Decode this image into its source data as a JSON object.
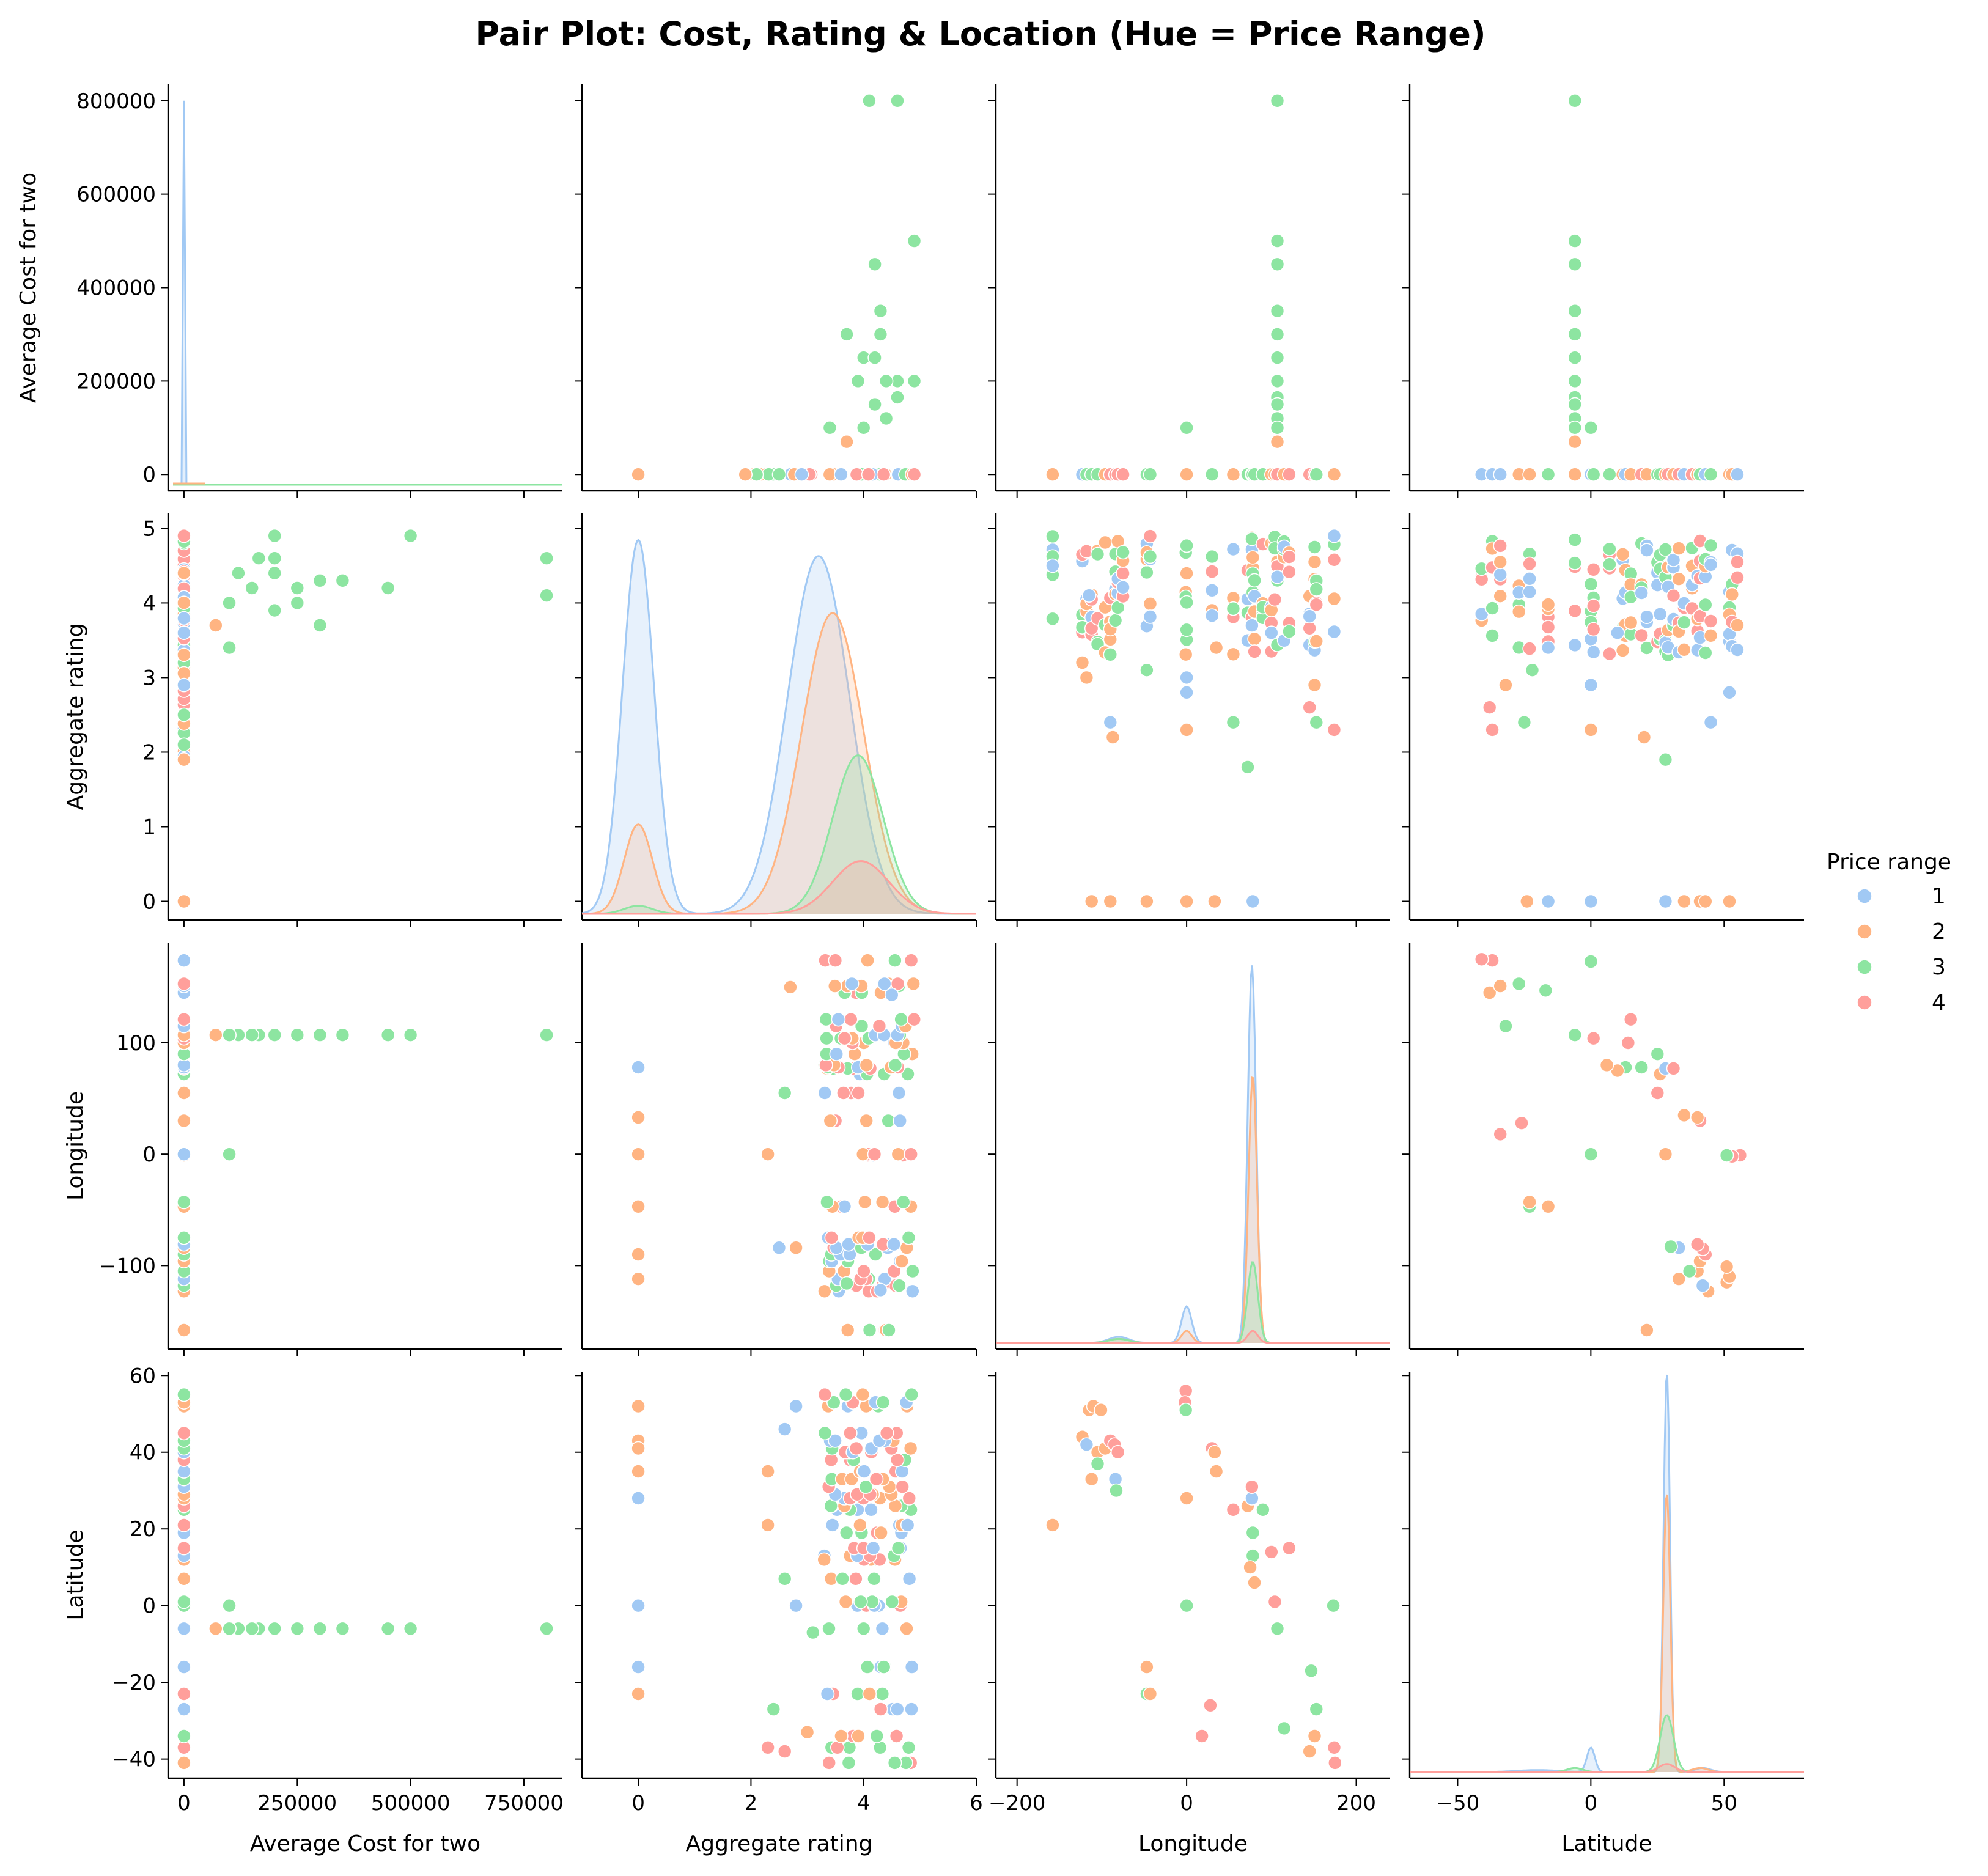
{
  "chart_data": {
    "type": "scatter",
    "title": "Pair Plot: Cost, Rating & Location (Hue = Price Range)",
    "variables": [
      {
        "key": "cost",
        "label": "Average Cost for two",
        "range": [
          -35000,
          835000
        ],
        "ticks": [
          0,
          200000,
          400000,
          600000,
          800000
        ],
        "xticks": [
          0,
          250000,
          500000,
          750000
        ],
        "xtick_labels": [
          "0",
          "250000",
          "500000",
          "750000"
        ]
      },
      {
        "key": "rating",
        "label": "Aggregate rating",
        "range": [
          -0.25,
          5.2
        ],
        "ticks": [
          0,
          1,
          2,
          3,
          4,
          5
        ],
        "xticks": [
          0,
          2,
          4,
          6
        ],
        "xtick_labels": [
          "0",
          "2",
          "4",
          "6"
        ],
        "xrange": [
          -1,
          6
        ]
      },
      {
        "key": "lon",
        "label": "Longitude",
        "range": [
          -175,
          190
        ],
        "ticks": [
          -100,
          0,
          100
        ],
        "tick_labels": [
          "−100",
          "0",
          "100"
        ],
        "xticks": [
          -200,
          0,
          200
        ],
        "xtick_labels": [
          "−200",
          "0",
          "200"
        ],
        "xrange": [
          -225,
          240
        ]
      },
      {
        "key": "lat",
        "label": "Latitude",
        "range": [
          -45,
          61
        ],
        "ticks": [
          -40,
          -20,
          0,
          20,
          40,
          60
        ],
        "tick_labels": [
          "−40",
          "−20",
          "0",
          "20",
          "40",
          "60"
        ],
        "xticks": [
          -50,
          0,
          50
        ],
        "xtick_labels": [
          "−50",
          "0",
          "50"
        ],
        "xrange": [
          -68,
          80
        ]
      }
    ],
    "legend": {
      "title": "Price range",
      "entries": [
        "1",
        "2",
        "3",
        "4"
      ],
      "placement": "right"
    },
    "colors": {
      "1": "#a1c9f4",
      "2": "#ffb482",
      "3": "#8de5a1",
      "4": "#ff9f9b"
    },
    "points": {
      "cost_rating": [
        [
          800000,
          4.6,
          3
        ],
        [
          800000,
          4.1,
          3
        ],
        [
          500000,
          4.9,
          3
        ],
        [
          450000,
          4.2,
          3
        ],
        [
          350000,
          4.3,
          3
        ],
        [
          300000,
          4.3,
          3
        ],
        [
          300000,
          3.7,
          3
        ],
        [
          250000,
          4.0,
          3
        ],
        [
          250000,
          4.2,
          3
        ],
        [
          200000,
          4.9,
          3
        ],
        [
          200000,
          4.6,
          3
        ],
        [
          200000,
          4.4,
          3
        ],
        [
          200000,
          3.9,
          3
        ],
        [
          165000,
          4.6,
          3
        ],
        [
          150000,
          4.2,
          3
        ],
        [
          120000,
          4.4,
          3
        ],
        [
          100000,
          4.0,
          3
        ],
        [
          100000,
          3.4,
          3
        ],
        [
          70000,
          3.7,
          2
        ],
        [
          0,
          0,
          2
        ],
        [
          0,
          4.9,
          4
        ],
        [
          0,
          3.6,
          1
        ],
        [
          0,
          2.1,
          3
        ],
        [
          0,
          1.9,
          2
        ],
        [
          0,
          2.5,
          3
        ],
        [
          0,
          2.9,
          1
        ]
      ],
      "lon_lat": [
        [
          -123,
          44,
          2
        ],
        [
          -115,
          51,
          2
        ],
        [
          -110,
          52,
          2
        ],
        [
          -101,
          51,
          2
        ],
        [
          -118,
          42,
          1
        ],
        [
          -105,
          40,
          2
        ],
        [
          -96,
          41,
          2
        ],
        [
          -90,
          43,
          4
        ],
        [
          -85,
          42,
          4
        ],
        [
          -81,
          40,
          4
        ],
        [
          -84,
          33,
          1
        ],
        [
          -83,
          30,
          3
        ],
        [
          -112,
          33,
          2
        ],
        [
          -105,
          37,
          3
        ],
        [
          -158,
          21,
          2
        ],
        [
          -47,
          -16,
          2
        ],
        [
          -47,
          -23,
          3
        ],
        [
          -43,
          -23,
          2
        ],
        [
          -1,
          56,
          4
        ],
        [
          -2,
          53,
          4
        ],
        [
          -1,
          51,
          3
        ],
        [
          0,
          28,
          2
        ],
        [
          0,
          0,
          3
        ],
        [
          30,
          41,
          4
        ],
        [
          33,
          40,
          2
        ],
        [
          35,
          35,
          2
        ],
        [
          28,
          -26,
          4
        ],
        [
          18,
          -34,
          4
        ],
        [
          55,
          25,
          4
        ],
        [
          72,
          26,
          2
        ],
        [
          77,
          28,
          1
        ],
        [
          77,
          31,
          4
        ],
        [
          78,
          19,
          3
        ],
        [
          78,
          13,
          3
        ],
        [
          75,
          10,
          2
        ],
        [
          80,
          6,
          2
        ],
        [
          90,
          25,
          3
        ],
        [
          100,
          14,
          4
        ],
        [
          104,
          1,
          4
        ],
        [
          107,
          -6,
          3
        ],
        [
          121,
          15,
          4
        ],
        [
          115,
          -32,
          3
        ],
        [
          145,
          -38,
          2
        ],
        [
          151,
          -34,
          2
        ],
        [
          153,
          -27,
          3
        ],
        [
          147,
          -17,
          3
        ],
        [
          174,
          -37,
          4
        ],
        [
          175,
          -41,
          4
        ],
        [
          173,
          0,
          3
        ]
      ],
      "rating_lon": [
        [
          0,
          78,
          1
        ],
        [
          0,
          33,
          2
        ],
        [
          0,
          0,
          2
        ],
        [
          0,
          -47,
          2
        ],
        [
          0,
          -90,
          2
        ],
        [
          0,
          -112,
          2
        ],
        [
          2.3,
          0,
          2
        ],
        [
          2.8,
          -84,
          2
        ],
        [
          2.6,
          55,
          3
        ],
        [
          2.7,
          150,
          2
        ],
        [
          2.5,
          -84,
          1
        ],
        [
          4.3,
          -122,
          1
        ],
        [
          3.7,
          -116,
          3
        ],
        [
          4.5,
          143,
          1
        ],
        [
          4.1,
          -75,
          4
        ]
      ],
      "rating_lat": [
        [
          0,
          52,
          2
        ],
        [
          0,
          43,
          2
        ],
        [
          0,
          41,
          2
        ],
        [
          0,
          35,
          2
        ],
        [
          0,
          28,
          1
        ],
        [
          0,
          0,
          1
        ],
        [
          0,
          -16,
          1
        ],
        [
          0,
          -23,
          2
        ],
        [
          2.3,
          35,
          2
        ],
        [
          2.3,
          21,
          2
        ],
        [
          2.6,
          7,
          3
        ],
        [
          2.4,
          -27,
          3
        ],
        [
          2.3,
          -37,
          4
        ],
        [
          2.6,
          -38,
          4
        ],
        [
          2.8,
          52,
          1
        ],
        [
          2.6,
          46,
          1
        ],
        [
          3.0,
          -33,
          2
        ],
        [
          2.8,
          0,
          1
        ],
        [
          3.3,
          12,
          2
        ],
        [
          3.1,
          -7,
          3
        ]
      ],
      "lat_rating_extra": [
        [
          -38,
          2.6,
          4
        ],
        [
          -37,
          2.3,
          4
        ],
        [
          -32,
          2.9,
          2
        ],
        [
          -25,
          2.4,
          3
        ],
        [
          -22,
          3.1,
          3
        ],
        [
          -16,
          3.4,
          1
        ],
        [
          0,
          2.3,
          2
        ],
        [
          0,
          2.9,
          1
        ],
        [
          10,
          3.6,
          1
        ],
        [
          20,
          2.2,
          2
        ],
        [
          28,
          1.9,
          3
        ],
        [
          45,
          2.4,
          1
        ],
        [
          52,
          2.8,
          1
        ],
        [
          -24,
          0,
          2
        ],
        [
          -16,
          0,
          1
        ],
        [
          0,
          0,
          1
        ],
        [
          28,
          0,
          1
        ],
        [
          35,
          0,
          2
        ],
        [
          41,
          0,
          2
        ],
        [
          43,
          0,
          2
        ],
        [
          52,
          0,
          2
        ]
      ],
      "lon_rating_extra": [
        [
          -158,
          4.5,
          1
        ],
        [
          -123,
          3.2,
          2
        ],
        [
          -118,
          3.0,
          2
        ],
        [
          -115,
          4.1,
          1
        ],
        [
          -90,
          2.4,
          1
        ],
        [
          -87,
          2.2,
          2
        ],
        [
          -47,
          3.1,
          3
        ],
        [
          0,
          2.3,
          2
        ],
        [
          0,
          2.8,
          1
        ],
        [
          0,
          3.0,
          1
        ],
        [
          35,
          3.4,
          2
        ],
        [
          55,
          2.4,
          3
        ],
        [
          72,
          1.8,
          3
        ],
        [
          100,
          3.6,
          1
        ],
        [
          145,
          2.6,
          4
        ],
        [
          151,
          2.9,
          2
        ],
        [
          153,
          2.4,
          3
        ],
        [
          174,
          2.3,
          4
        ],
        [
          174,
          4.9,
          1
        ],
        [
          -112,
          0,
          2
        ],
        [
          -90,
          0,
          2
        ],
        [
          -47,
          0,
          2
        ],
        [
          0,
          0,
          2
        ],
        [
          33,
          0,
          2
        ],
        [
          78,
          0,
          1
        ]
      ]
    }
  }
}
